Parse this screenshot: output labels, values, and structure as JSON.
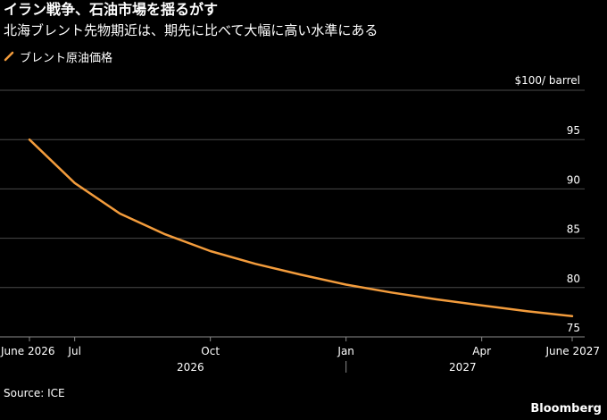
{
  "title": "イラン戦争、石油市場を揺るがす",
  "subtitle": "北海ブレント先物期近は、期先に比べて大幅に高い水準にある",
  "legend": {
    "label": "ブレント原油価格"
  },
  "colors": {
    "series": "#f39c3c",
    "background": "#000000",
    "grid": "#4a4a4a",
    "text": "#ffffff"
  },
  "chart_data": {
    "type": "line",
    "title": "イラン戦争、石油市場を揺るがす",
    "ylabel": "$100/ barrel",
    "ylim": [
      75,
      100
    ],
    "yticks": [
      75,
      80,
      85,
      90,
      95
    ],
    "grid": true,
    "legend_position": "top-left",
    "x_range": [
      "2026-06",
      "2027-06"
    ],
    "xtick_labels": [
      "June 2026",
      "Jul",
      "Oct",
      "Jan",
      "Apr",
      "June 2027"
    ],
    "xtick_dates": [
      "2026-06",
      "2026-07",
      "2026-10",
      "2027-01",
      "2027-04",
      "2027-06"
    ],
    "year_labels": [
      "2026",
      "2027"
    ],
    "series": [
      {
        "name": "ブレント原油価格",
        "x": [
          "2026-06",
          "2026-07",
          "2026-08",
          "2026-09",
          "2026-10",
          "2026-11",
          "2026-12",
          "2027-01",
          "2027-02",
          "2027-03",
          "2027-04",
          "2027-05",
          "2027-06"
        ],
        "values": [
          95.0,
          90.6,
          87.5,
          85.4,
          83.7,
          82.4,
          81.3,
          80.3,
          79.5,
          78.8,
          78.2,
          77.6,
          77.1
        ]
      }
    ]
  },
  "footer": {
    "source": "Source: ICE",
    "brand": "Bloomberg"
  }
}
